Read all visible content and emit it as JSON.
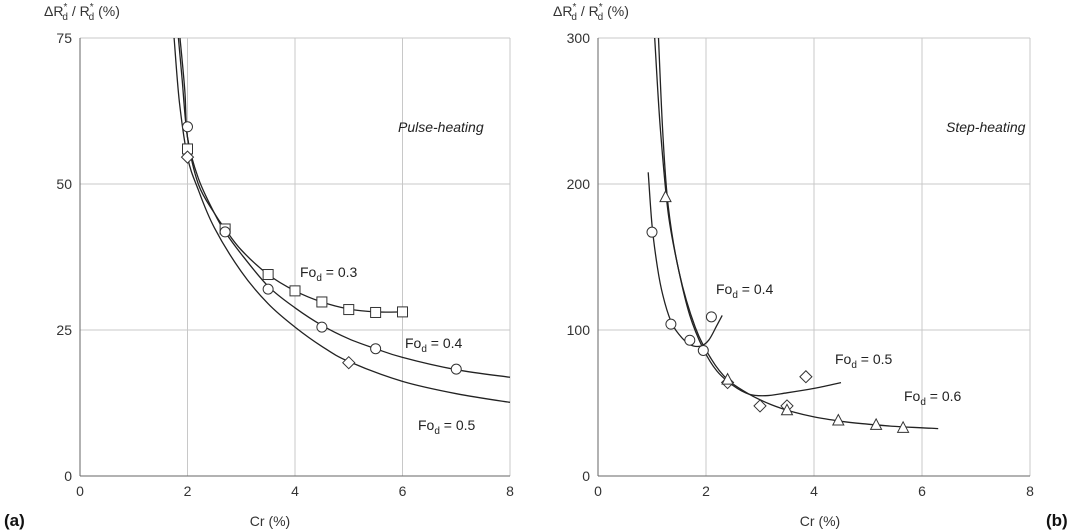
{
  "panels": [
    {
      "panel_label": "(a)",
      "method_label": "Pulse-heating",
      "chart_data": {
        "type": "scatter",
        "ylabel_main": "ΔR",
        "ylabel_main_sup": "*",
        "ylabel_main_sub": "d",
        "ylabel_sep": " / ",
        "ylabel_den": "R",
        "ylabel_den_sup": "*",
        "ylabel_den_sub": "d",
        "ylabel_unit": " (%)",
        "xlabel": "Cr  (%)",
        "xlim": [
          0,
          8
        ],
        "ylim": [
          0,
          75
        ],
        "xticks": [
          0,
          2,
          4,
          6,
          8
        ],
        "yticks": [
          0,
          25,
          50,
          75
        ],
        "grid": true,
        "series": [
          {
            "name": "Fo",
            "name_sub": "d",
            "name_value": " = 0.3",
            "marker": "square",
            "x": [
              2.0,
              2.7,
              3.5,
              4.0,
              4.5,
              5.0,
              5.5,
              6.0
            ],
            "y": [
              56.0,
              42.3,
              34.5,
              31.7,
              29.8,
              28.5,
              28.0,
              28.1
            ],
            "fit": [
              [
                1.83,
                75
              ],
              [
                1.9,
                68
              ],
              [
                2.0,
                58
              ],
              [
                2.2,
                50
              ],
              [
                2.5,
                45
              ],
              [
                2.7,
                42.3
              ],
              [
                3.0,
                38.7
              ],
              [
                3.5,
                34.5
              ],
              [
                4.0,
                31.7
              ],
              [
                4.5,
                29.8
              ],
              [
                5.0,
                28.6
              ],
              [
                5.5,
                28.1
              ],
              [
                6.0,
                28.1
              ]
            ]
          },
          {
            "name": "Fo",
            "name_sub": "d",
            "name_value": " = 0.4",
            "marker": "circle",
            "x": [
              2.0,
              2.7,
              3.5,
              4.5,
              5.5,
              7.0
            ],
            "y": [
              59.8,
              41.8,
              32.0,
              25.5,
              21.8,
              18.3
            ],
            "fit": [
              [
                1.86,
                75
              ],
              [
                1.95,
                66
              ],
              [
                2.0,
                58
              ],
              [
                2.2,
                51
              ],
              [
                2.5,
                45
              ],
              [
                2.7,
                41.8
              ],
              [
                3.0,
                38.0
              ],
              [
                3.5,
                32.5
              ],
              [
                4.0,
                28.8
              ],
              [
                4.5,
                25.8
              ],
              [
                5.0,
                23.5
              ],
              [
                5.5,
                21.8
              ],
              [
                6.0,
                20.3
              ],
              [
                7.0,
                18.2
              ],
              [
                8.0,
                16.9
              ]
            ]
          },
          {
            "name": "Fo",
            "name_sub": "d",
            "name_value": " = 0.5",
            "marker": "diamond",
            "x": [
              2.0,
              5.0
            ],
            "y": [
              54.6,
              19.4
            ],
            "fit": [
              [
                1.75,
                75
              ],
              [
                1.85,
                64
              ],
              [
                2.0,
                54.6
              ],
              [
                2.2,
                49
              ],
              [
                2.5,
                42.5
              ],
              [
                3.0,
                35.0
              ],
              [
                3.5,
                29.5
              ],
              [
                4.0,
                25.5
              ],
              [
                4.5,
                22.2
              ],
              [
                5.0,
                19.6
              ],
              [
                6.0,
                16.2
              ],
              [
                7.0,
                14.1
              ],
              [
                8.0,
                12.6
              ]
            ]
          }
        ]
      }
    },
    {
      "panel_label": "(b)",
      "method_label": "Step-heating",
      "chart_data": {
        "type": "scatter",
        "ylabel_main": "ΔR",
        "ylabel_main_sup": "*",
        "ylabel_main_sub": "d",
        "ylabel_sep": " / ",
        "ylabel_den": "R",
        "ylabel_den_sup": "*",
        "ylabel_den_sub": "d",
        "ylabel_unit": " (%)",
        "xlabel": "Cr  (%)",
        "xlim": [
          0,
          8
        ],
        "ylim": [
          0,
          300
        ],
        "xticks": [
          0,
          2,
          4,
          6,
          8
        ],
        "yticks": [
          0,
          100,
          200,
          300
        ],
        "grid": true,
        "series": [
          {
            "name": "Fo",
            "name_sub": "d",
            "name_value": " = 0.4",
            "marker": "circle",
            "x": [
              1.0,
              1.35,
              1.7,
              1.95,
              2.1
            ],
            "y": [
              167,
              104,
              93,
              86,
              109
            ],
            "fit": [
              [
                0.93,
                208
              ],
              [
                1.0,
                172
              ],
              [
                1.1,
                143
              ],
              [
                1.2,
                124
              ],
              [
                1.35,
                106
              ],
              [
                1.5,
                97
              ],
              [
                1.7,
                90
              ],
              [
                1.9,
                89
              ],
              [
                2.05,
                93
              ],
              [
                2.2,
                103
              ],
              [
                2.3,
                110
              ]
            ]
          },
          {
            "name": "Fo",
            "name_sub": "d",
            "name_value": " = 0.5",
            "marker": "diamond",
            "x": [
              2.4,
              3.0,
              3.5,
              3.85
            ],
            "y": [
              64,
              48,
              48,
              68
            ],
            "fit": [
              [
                1.05,
                300
              ],
              [
                1.15,
                240
              ],
              [
                1.3,
                180
              ],
              [
                1.5,
                140
              ],
              [
                1.7,
                110
              ],
              [
                1.95,
                87
              ],
              [
                2.2,
                72
              ],
              [
                2.5,
                62
              ],
              [
                2.8,
                56
              ],
              [
                3.1,
                55
              ],
              [
                3.5,
                57
              ],
              [
                4.0,
                60
              ],
              [
                4.5,
                64
              ]
            ]
          },
          {
            "name": "Fo",
            "name_sub": "d",
            "name_value": " = 0.6",
            "marker": "triangle",
            "x": [
              1.25,
              2.4,
              3.5,
              4.45,
              5.15,
              5.65
            ],
            "y": [
              191,
              66,
              45,
              38,
              35,
              33
            ],
            "fit": [
              [
                1.12,
                300
              ],
              [
                1.2,
                235
              ],
              [
                1.3,
                185
              ],
              [
                1.5,
                140
              ],
              [
                1.8,
                102
              ],
              [
                2.1,
                80
              ],
              [
                2.4,
                66
              ],
              [
                2.8,
                56
              ],
              [
                3.2,
                49
              ],
              [
                3.6,
                44
              ],
              [
                4.0,
                40.5
              ],
              [
                4.5,
                37.5
              ],
              [
                5.0,
                35.5
              ],
              [
                5.5,
                34
              ],
              [
                6.0,
                33
              ],
              [
                6.3,
                32.5
              ]
            ]
          }
        ]
      }
    }
  ]
}
